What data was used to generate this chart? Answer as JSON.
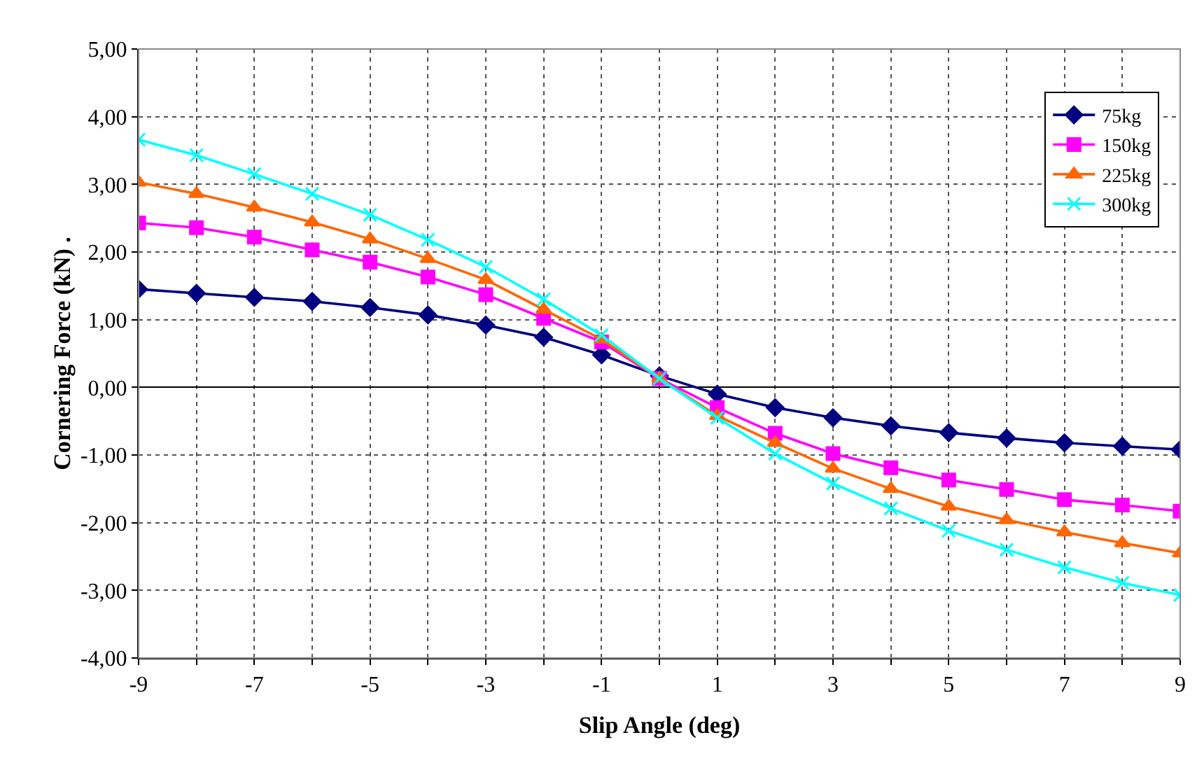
{
  "chart_data": {
    "type": "line",
    "xlabel": "Slip Angle (deg)",
    "ylabel": "Cornering Force (kN) .",
    "x": [
      -9,
      -8,
      -7,
      -6,
      -5,
      -4,
      -3,
      -2,
      -1,
      0,
      1,
      2,
      3,
      4,
      5,
      6,
      7,
      8,
      9
    ],
    "series": [
      {
        "name": "75kg",
        "color": "#000080",
        "marker": "diamond",
        "values": [
          1.45,
          1.39,
          1.33,
          1.27,
          1.18,
          1.07,
          0.92,
          0.74,
          0.48,
          0.17,
          -0.1,
          -0.3,
          -0.45,
          -0.57,
          -0.67,
          -0.75,
          -0.82,
          -0.87,
          -0.92
        ]
      },
      {
        "name": "150kg",
        "color": "#ff00ff",
        "marker": "square",
        "values": [
          2.43,
          2.36,
          2.22,
          2.03,
          1.85,
          1.63,
          1.37,
          1.02,
          0.67,
          0.13,
          -0.3,
          -0.68,
          -0.98,
          -1.19,
          -1.37,
          -1.51,
          -1.66,
          -1.74,
          -1.83
        ]
      },
      {
        "name": "225kg",
        "color": "#ff6600",
        "marker": "triangle",
        "values": [
          3.03,
          2.86,
          2.66,
          2.44,
          2.19,
          1.9,
          1.59,
          1.15,
          0.71,
          0.13,
          -0.42,
          -0.82,
          -1.2,
          -1.5,
          -1.76,
          -1.96,
          -2.14,
          -2.3,
          -2.45
        ]
      },
      {
        "name": "300kg",
        "color": "#00ffff",
        "marker": "cross",
        "values": [
          3.66,
          3.43,
          3.15,
          2.86,
          2.55,
          2.18,
          1.78,
          1.3,
          0.77,
          0.13,
          -0.45,
          -0.98,
          -1.42,
          -1.79,
          -2.12,
          -2.4,
          -2.66,
          -2.89,
          -3.07
        ]
      }
    ],
    "xlim": [
      -9,
      9
    ],
    "xticks": [
      -9,
      {
        "value": -8,
        "label": null
      },
      -7,
      {
        "value": -6,
        "label": null
      },
      -5,
      {
        "value": -4,
        "label": null
      },
      -3,
      {
        "value": -2,
        "label": null
      },
      -1,
      {
        "value": 0,
        "label": null
      },
      1,
      {
        "value": 2,
        "label": null
      },
      3,
      {
        "value": 4,
        "label": null
      },
      5,
      {
        "value": 6,
        "label": null
      },
      7,
      {
        "value": 8,
        "label": null
      },
      9
    ],
    "ylim": [
      -4,
      5
    ],
    "yticks": [
      {
        "value": -4,
        "label": "-4,00"
      },
      {
        "value": -3,
        "label": "-3,00"
      },
      {
        "value": -2,
        "label": "-2,00"
      },
      {
        "value": -1,
        "label": "-1,00"
      },
      {
        "value": 0,
        "label": "0,00"
      },
      {
        "value": 1,
        "label": "1,00"
      },
      {
        "value": 2,
        "label": "2,00"
      },
      {
        "value": 3,
        "label": "3,00"
      },
      {
        "value": 4,
        "label": "4,00"
      },
      {
        "value": 5,
        "label": "5,00"
      }
    ],
    "grid": true,
    "legend": "top right",
    "line_style": "solid"
  }
}
